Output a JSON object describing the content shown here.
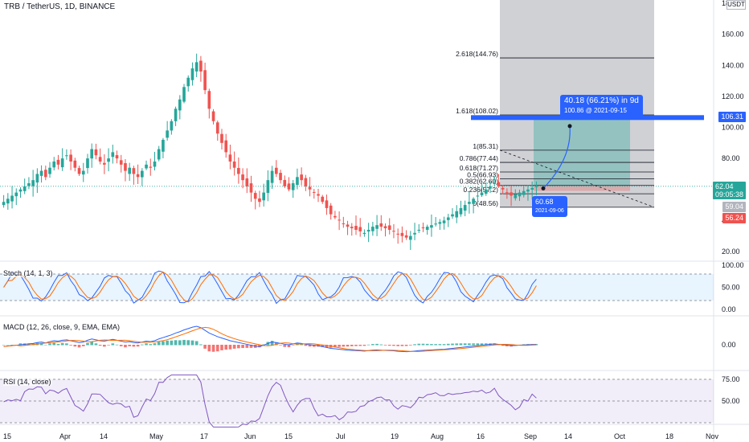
{
  "header": {
    "title": "TRB / TetherUS, 1D, BINANCE"
  },
  "price_axis": {
    "unit_label": "USDT",
    "ticks": [
      "180.00",
      "160.00",
      "140.00",
      "120.00",
      "100.00",
      "80.00",
      "60.00",
      "40.00",
      "20.00"
    ],
    "tags": [
      {
        "label": "106.31",
        "color": "#2962ff"
      },
      {
        "label": "62.04",
        "sub": "09:05:38",
        "color": "#26a69a"
      },
      {
        "label": "59.04",
        "color": "#b2b5be"
      },
      {
        "label": "56.24",
        "color": "#ef5350"
      }
    ]
  },
  "fib_levels": [
    {
      "label": "2.618(144.76)",
      "value": 144.76
    },
    {
      "label": "1.618(108.02)",
      "value": 108.02
    },
    {
      "label": "1(85.31)",
      "value": 85.31
    },
    {
      "label": "0.786(77.44)",
      "value": 77.44
    },
    {
      "label": "0.618(71.27)",
      "value": 71.27
    },
    {
      "label": "0.5(66.93)",
      "value": 66.93
    },
    {
      "label": "0.382(62.60)",
      "value": 62.6
    },
    {
      "label": "0.236(57.2)",
      "value": 57.2
    },
    {
      "label": "0(48.56)",
      "value": 48.56
    }
  ],
  "callouts": {
    "target": {
      "main": "40.18 (66.21%) in 9d",
      "sub": "100.86 @ 2021-09-15"
    },
    "entry": {
      "main": "60.68",
      "sub": "2021-09-06"
    }
  },
  "indicators": {
    "stoch": {
      "label": "Stoch (14, 1, 3)",
      "ticks": [
        "100.00",
        "50.00",
        "0.00"
      ]
    },
    "macd": {
      "label": "MACD (12, 26, close, 9, EMA, EMA)",
      "ticks": [
        "0.00"
      ]
    },
    "rsi": {
      "label": "RSI (14, close)",
      "ticks": [
        "75.00",
        "50.00"
      ]
    }
  },
  "time_axis": {
    "labels": [
      "15",
      "Apr",
      "14",
      "May",
      "17",
      "Jun",
      "15",
      "Jul",
      "19",
      "Aug",
      "16",
      "Sep",
      "14",
      "Oct",
      "18",
      "Nov"
    ]
  },
  "colors": {
    "up": "#26a69a",
    "down": "#ef5350",
    "accent": "#2962ff"
  },
  "chart_data": {
    "type": "candlestick",
    "ylim": [
      20,
      180
    ],
    "close_series": [
      52,
      54,
      56,
      58,
      60,
      62,
      64,
      66,
      70,
      72,
      68,
      74,
      78,
      76,
      80,
      82,
      78,
      74,
      70,
      72,
      80,
      86,
      82,
      78,
      76,
      80,
      84,
      80,
      76,
      72,
      74,
      70,
      68,
      72,
      76,
      74,
      78,
      86,
      92,
      98,
      104,
      112,
      118,
      126,
      132,
      138,
      142,
      136,
      124,
      112,
      104,
      96,
      90,
      84,
      78,
      74,
      70,
      66,
      62,
      58,
      54,
      52,
      58,
      66,
      72,
      70,
      66,
      62,
      60,
      64,
      68,
      66,
      62,
      60,
      58,
      56,
      52,
      48,
      44,
      42,
      40,
      38,
      36,
      35,
      34,
      33,
      32,
      34,
      36,
      37,
      36,
      35,
      34,
      33,
      31,
      30,
      29,
      30,
      32,
      34,
      35,
      36,
      37,
      38,
      39,
      40,
      42,
      44,
      46,
      48,
      50,
      52,
      54,
      56,
      58,
      60,
      62,
      64,
      62,
      60,
      58,
      56,
      57,
      58,
      59,
      60,
      61,
      62
    ]
  }
}
